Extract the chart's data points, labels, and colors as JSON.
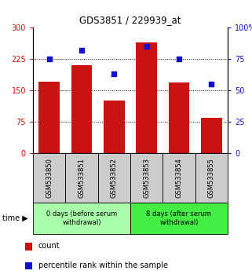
{
  "title": "GDS3851 / 229939_at",
  "categories": [
    "GSM533850",
    "GSM533851",
    "GSM533852",
    "GSM533853",
    "GSM533854",
    "GSM533855"
  ],
  "bar_values": [
    170,
    210,
    125,
    265,
    168,
    85
  ],
  "percentile_values": [
    75,
    82,
    63,
    85,
    75,
    55
  ],
  "bar_color": "#cc1111",
  "dot_color": "#1111cc",
  "left_ylim": [
    0,
    300
  ],
  "right_ylim": [
    0,
    100
  ],
  "left_yticks": [
    0,
    75,
    150,
    225,
    300
  ],
  "right_yticks": [
    0,
    25,
    50,
    75,
    100
  ],
  "right_yticklabels": [
    "0",
    "25",
    "50",
    "75",
    "100%"
  ],
  "hlines": [
    75,
    150,
    225
  ],
  "group1_label": "0 days (before serum\nwithdrawal)",
  "group2_label": "8 days (after serum\nwithdrawal)",
  "group1_indices": [
    0,
    1,
    2
  ],
  "group2_indices": [
    3,
    4,
    5
  ],
  "time_label": "time",
  "legend_count_label": "count",
  "legend_pct_label": "percentile rank within the sample",
  "bg_color": "#ffffff",
  "gsm_box_color": "#cccccc",
  "group1_fill": "#aaffaa",
  "group2_fill": "#44ee44",
  "fig_width": 3.21,
  "fig_height": 3.54,
  "dpi": 100
}
